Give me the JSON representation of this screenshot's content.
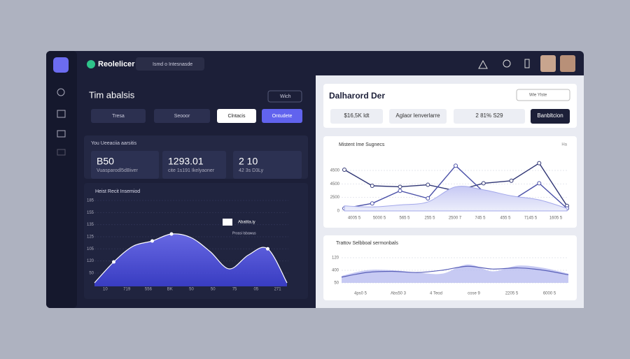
{
  "header": {
    "brand": "Reolelicer",
    "search": "Ismd o Intesnasde"
  },
  "left": {
    "title": "Tim abalsis",
    "dropdown": "Wich",
    "filters": [
      "Tresa",
      "Seooor",
      "Clntacis",
      "Ontudete"
    ],
    "stats_title": "You Ueeaciia aarsitis",
    "stats": [
      {
        "value": "B50",
        "label": "Vuasparodl5dBiver"
      },
      {
        "value": "1293.01",
        "label": "cite 1s191 Ikelyaoner"
      },
      {
        "value": "2 10",
        "label": "42 3s  D3Ly"
      }
    ],
    "chart": {
      "title": "Heist Recit Insemiod",
      "callout": "Abatita.iy",
      "callout_sub": "Prossi Isbawus",
      "y_labels": [
        "185",
        "155",
        "135",
        "125",
        "105",
        "120",
        "50"
      ],
      "x_labels": [
        "10",
        "719",
        "556",
        "BK",
        "50",
        "50",
        "75",
        "05",
        "271"
      ],
      "ylim": [
        0,
        100
      ],
      "values": [
        4,
        28,
        46,
        52,
        60,
        56,
        40,
        20,
        36,
        43,
        4
      ]
    }
  },
  "right": {
    "title": "Dalharord Der",
    "dropdown": "Wie Ylste",
    "filters": [
      "$16,5K ldt",
      "Aglaor lenverlarre",
      "2 81% S29",
      "Banbltcion"
    ],
    "chart1": {
      "title": "Mistent Ime Sugnecs",
      "corner": "Ha",
      "y_labels": [
        "4500",
        "4500",
        "2500",
        "0"
      ],
      "x_labels": [
        "4005 5",
        "5000 5",
        "565 5",
        "255 5",
        "2500 7",
        "745 5",
        "455 5",
        "7145 5",
        "1605 5"
      ],
      "ylim": [
        0,
        100
      ],
      "series": [
        {
          "color": "#2f3574",
          "values": [
            82,
            50,
            48,
            52,
            40,
            55,
            60,
            95,
            10
          ]
        },
        {
          "color": "#4a50a8",
          "values": [
            5,
            15,
            40,
            25,
            90,
            38,
            20,
            55,
            5
          ]
        },
        {
          "color": "#a3a8ea",
          "values": [
            10,
            8,
            12,
            18,
            48,
            42,
            30,
            22,
            5
          ]
        }
      ]
    },
    "chart2": {
      "title": "Trattov Selbboal sermonbals",
      "y_labels": [
        "120",
        "400",
        "50"
      ],
      "x_labels": [
        "4ps0 5",
        "Abs50 3",
        "4 Teod",
        "cose 9",
        "2205 5",
        "6000 5"
      ],
      "ylim": [
        0,
        100
      ],
      "series": [
        {
          "color": "#b9bdf0",
          "values": [
            30,
            55,
            55,
            45,
            40,
            80,
            50,
            75,
            65,
            40
          ]
        },
        {
          "color": "#5a60b8",
          "values": [
            25,
            45,
            50,
            45,
            55,
            72,
            60,
            65,
            55,
            35
          ]
        }
      ]
    }
  }
}
